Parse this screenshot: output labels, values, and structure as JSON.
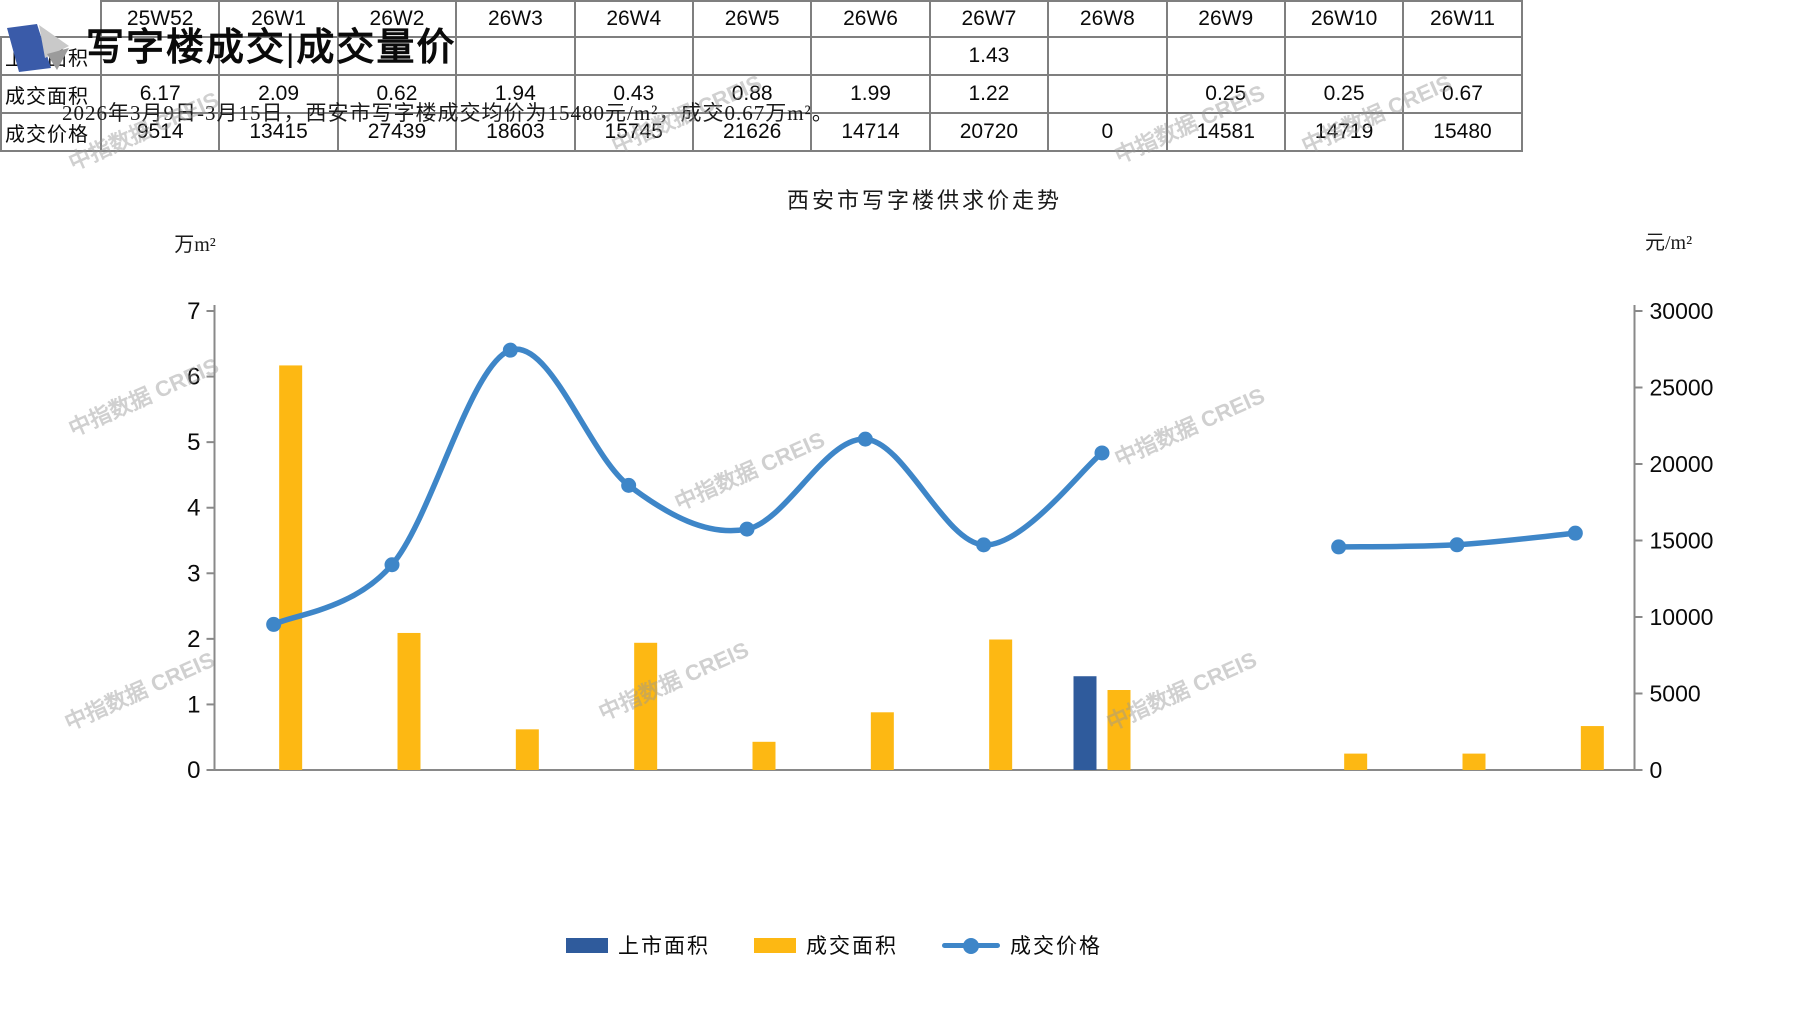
{
  "page": {
    "title": "写字楼成交|成交量价",
    "subtitle": "2026年3月9日-3月15日，西安市写字楼成交均价为15480元/m²，成交0.67万m²。",
    "watermark": "中指数据 CREIS"
  },
  "chart_data": {
    "type": "bar",
    "subtype": "clustered-bars-with-smooth-line-combo",
    "title": "西安市写字楼供求价走势",
    "categories": [
      "25W52",
      "26W1",
      "26W2",
      "26W3",
      "26W4",
      "26W5",
      "26W6",
      "26W7",
      "26W8",
      "26W9",
      "26W10",
      "26W11"
    ],
    "series": [
      {
        "name": "上市面积",
        "type": "bar",
        "axis": "left",
        "color": "#2F5B9C",
        "values": [
          null,
          null,
          null,
          null,
          null,
          null,
          null,
          1.43,
          null,
          null,
          null,
          null
        ]
      },
      {
        "name": "成交面积",
        "type": "bar",
        "axis": "left",
        "color": "#FDB813",
        "values": [
          6.17,
          2.09,
          0.62,
          1.94,
          0.43,
          0.88,
          1.99,
          1.22,
          null,
          0.25,
          0.25,
          0.67
        ]
      },
      {
        "name": "成交价格",
        "type": "line",
        "axis": "right",
        "color": "#3E86C8",
        "values": [
          9514,
          13415,
          27439,
          18603,
          15745,
          21626,
          14714,
          20720,
          null,
          14581,
          14719,
          15480
        ]
      }
    ],
    "left_axis": {
      "unit": "万m²",
      "min": 0,
      "max": 7,
      "ticks": [
        0,
        1,
        2,
        3,
        4,
        5,
        6,
        7
      ]
    },
    "right_axis": {
      "unit": "元/m²",
      "min": 0,
      "max": 30000,
      "ticks": [
        0,
        5000,
        10000,
        15000,
        20000,
        25000,
        30000
      ]
    },
    "grid": false,
    "legend_position": "bottom"
  },
  "table": {
    "rows": [
      {
        "label": "上市面积",
        "cells": [
          "",
          "",
          "",
          "",
          "",
          "",
          "",
          "1.43",
          "",
          "",
          "",
          ""
        ]
      },
      {
        "label": "成交面积",
        "cells": [
          "6.17",
          "2.09",
          "0.62",
          "1.94",
          "0.43",
          "0.88",
          "1.99",
          "1.22",
          "",
          "0.25",
          "0.25",
          "0.67"
        ]
      },
      {
        "label": "成交价格",
        "cells": [
          "9514",
          "13415",
          "27439",
          "18603",
          "15745",
          "21626",
          "14714",
          "20720",
          "0",
          "14581",
          "14719",
          "15480"
        ]
      }
    ]
  }
}
